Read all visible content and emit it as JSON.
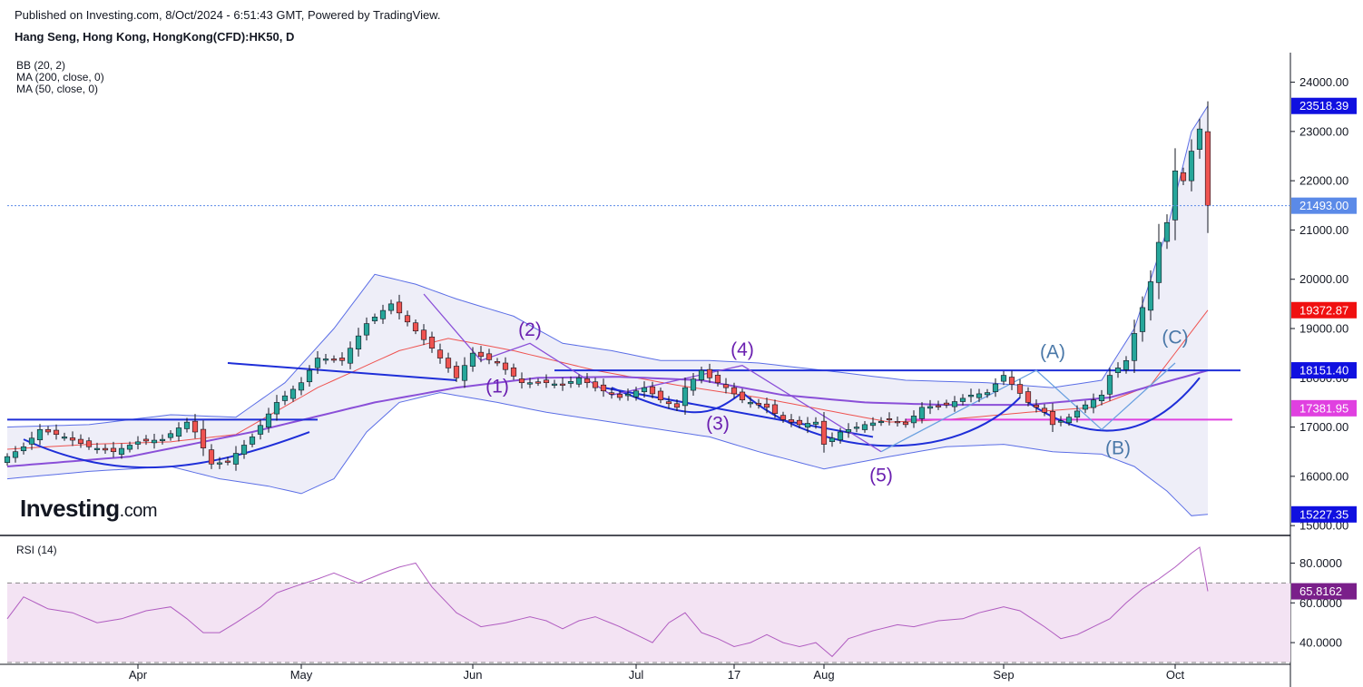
{
  "header": {
    "published": "Published on Investing.com, 8/Oct/2024 - 6:51:43 GMT, Powered by TradingView.",
    "symbol": "Hang Seng, Hong Kong, HongKong(CFD):HK50, D"
  },
  "indicators": {
    "bb": "BB (20, 2)",
    "ma200": "MA (200, close, 0)",
    "ma50": "MA (50, close, 0)",
    "rsi": "RSI (14)"
  },
  "logo": {
    "main": "Investing",
    "suffix": ".com"
  },
  "colors": {
    "up": "#26a69a",
    "down": "#ef5350",
    "trend": "#1e2ed8",
    "bb": "#5b6ee6",
    "bb_fill": "#eeeef8",
    "ma50": "#ef5350",
    "ma200": "#8a4fd8",
    "wave": "#8a4fd8",
    "magenta": "#e040e0",
    "rsi": "#b05cc0",
    "rsi_fill": "#f3e3f3"
  },
  "chart_data": [
    {
      "type": "candlestick",
      "ylim": [
        14800,
        24600
      ],
      "yticks": [
        "24000.00",
        "23000.00",
        "22000.00",
        "21000.00",
        "20000.00",
        "19000.00",
        "18000.00",
        "17000.00",
        "16000.00",
        "15000.00"
      ],
      "ytick_values": [
        24000,
        23000,
        22000,
        21000,
        20000,
        19000,
        18000,
        17000,
        16000,
        15000
      ],
      "xlim": [
        0,
        157
      ],
      "xlabels": [
        {
          "text": "Apr",
          "i": 16
        },
        {
          "text": "May",
          "i": 36
        },
        {
          "text": "Jun",
          "i": 57
        },
        {
          "text": "Jul",
          "i": 77
        },
        {
          "text": "17",
          "i": 89
        },
        {
          "text": "Aug",
          "i": 100
        },
        {
          "text": "Sep",
          "i": 122
        },
        {
          "text": "Oct",
          "i": 143
        }
      ],
      "price_labels": [
        {
          "text": "23518.39",
          "value": 23518.39,
          "color": "#1010e0"
        },
        {
          "text": "21493.00",
          "value": 21493.0,
          "color": "#5b8ae8"
        },
        {
          "text": "19372.87",
          "value": 19372.87,
          "color": "#f01010"
        },
        {
          "text": "18151.40",
          "value": 18151.4,
          "color": "#1010e0"
        },
        {
          "text": "17381.95",
          "value": 17381.95,
          "color": "#e040e0"
        },
        {
          "text": "15227.35",
          "value": 15227.35,
          "color": "#1010e0"
        }
      ],
      "current_price": 21493.0,
      "close_anchors": [
        [
          0,
          16400
        ],
        [
          2,
          16600
        ],
        [
          4,
          16950
        ],
        [
          7,
          16800
        ],
        [
          10,
          16600
        ],
        [
          13,
          16500
        ],
        [
          16,
          16700
        ],
        [
          19,
          16750
        ],
        [
          22,
          17100
        ],
        [
          23,
          16900
        ],
        [
          25,
          16250
        ],
        [
          27,
          16300
        ],
        [
          30,
          16800
        ],
        [
          33,
          17500
        ],
        [
          36,
          17900
        ],
        [
          38,
          18400
        ],
        [
          41,
          18350
        ],
        [
          44,
          19100
        ],
        [
          47,
          19500
        ],
        [
          50,
          18950
        ],
        [
          52,
          18600
        ],
        [
          55,
          18000
        ],
        [
          57,
          18500
        ],
        [
          60,
          18300
        ],
        [
          63,
          17900
        ],
        [
          66,
          17900
        ],
        [
          68,
          17850
        ],
        [
          70,
          18000
        ],
        [
          72,
          17800
        ],
        [
          75,
          17600
        ],
        [
          78,
          17800
        ],
        [
          80,
          17550
        ],
        [
          82,
          17400
        ],
        [
          83,
          17800
        ],
        [
          85,
          18150
        ],
        [
          86,
          18000
        ],
        [
          88,
          17800
        ],
        [
          90,
          17550
        ],
        [
          93,
          17400
        ],
        [
          95,
          17150
        ],
        [
          97,
          17050
        ],
        [
          99,
          17100
        ],
        [
          100,
          16650
        ],
        [
          102,
          16900
        ],
        [
          105,
          17050
        ],
        [
          108,
          17150
        ],
        [
          110,
          17050
        ],
        [
          112,
          17400
        ],
        [
          115,
          17450
        ],
        [
          118,
          17650
        ],
        [
          120,
          17700
        ],
        [
          122,
          18050
        ],
        [
          125,
          17500
        ],
        [
          127,
          17300
        ],
        [
          128,
          17050
        ],
        [
          130,
          17200
        ],
        [
          132,
          17450
        ],
        [
          134,
          17650
        ],
        [
          135,
          18050
        ],
        [
          137,
          18350
        ],
        [
          138,
          18900
        ],
        [
          140,
          19950
        ],
        [
          141,
          20750
        ],
        [
          142,
          21150
        ],
        [
          143,
          22200
        ],
        [
          144,
          22000
        ],
        [
          145,
          22600
        ],
        [
          146,
          23050
        ],
        [
          147,
          21493
        ]
      ],
      "ma50_anchors": [
        [
          0,
          16550
        ],
        [
          10,
          16650
        ],
        [
          20,
          16700
        ],
        [
          28,
          16850
        ],
        [
          38,
          17800
        ],
        [
          48,
          18550
        ],
        [
          54,
          18800
        ],
        [
          62,
          18550
        ],
        [
          72,
          18150
        ],
        [
          82,
          17850
        ],
        [
          92,
          17600
        ],
        [
          100,
          17350
        ],
        [
          108,
          17100
        ],
        [
          115,
          17150
        ],
        [
          125,
          17300
        ],
        [
          133,
          17400
        ],
        [
          140,
          17850
        ],
        [
          147,
          19372.87
        ]
      ],
      "ma200_anchors": [
        [
          0,
          16200
        ],
        [
          15,
          16400
        ],
        [
          30,
          16900
        ],
        [
          45,
          17500
        ],
        [
          55,
          17800
        ],
        [
          65,
          18000
        ],
        [
          75,
          18020
        ],
        [
          85,
          17950
        ],
        [
          95,
          17650
        ],
        [
          105,
          17500
        ],
        [
          115,
          17450
        ],
        [
          125,
          17450
        ],
        [
          135,
          17600
        ],
        [
          147,
          18151.4
        ]
      ],
      "bb_upper_anchors": [
        [
          0,
          17000
        ],
        [
          10,
          17050
        ],
        [
          20,
          17250
        ],
        [
          28,
          17200
        ],
        [
          34,
          17900
        ],
        [
          40,
          19000
        ],
        [
          45,
          20100
        ],
        [
          50,
          19900
        ],
        [
          55,
          19600
        ],
        [
          62,
          19250
        ],
        [
          68,
          18700
        ],
        [
          74,
          18550
        ],
        [
          80,
          18350
        ],
        [
          86,
          18350
        ],
        [
          92,
          18300
        ],
        [
          100,
          18150
        ],
        [
          110,
          17950
        ],
        [
          120,
          17900
        ],
        [
          128,
          17800
        ],
        [
          134,
          17950
        ],
        [
          138,
          19000
        ],
        [
          142,
          21000
        ],
        [
          145,
          23000
        ],
        [
          147,
          23518.39
        ]
      ],
      "bb_lower_anchors": [
        [
          0,
          15950
        ],
        [
          10,
          16100
        ],
        [
          20,
          16200
        ],
        [
          26,
          15950
        ],
        [
          32,
          15800
        ],
        [
          36,
          15650
        ],
        [
          40,
          15950
        ],
        [
          44,
          16900
        ],
        [
          48,
          17500
        ],
        [
          53,
          17700
        ],
        [
          60,
          17500
        ],
        [
          66,
          17300
        ],
        [
          74,
          17100
        ],
        [
          80,
          16950
        ],
        [
          86,
          16800
        ],
        [
          92,
          16500
        ],
        [
          100,
          16150
        ],
        [
          108,
          16400
        ],
        [
          115,
          16600
        ],
        [
          122,
          16650
        ],
        [
          128,
          16500
        ],
        [
          134,
          16450
        ],
        [
          138,
          16200
        ],
        [
          142,
          15700
        ],
        [
          145,
          15200
        ],
        [
          147,
          15227.35
        ]
      ],
      "trendlines": [
        {
          "p1": [
            0,
            17150
          ],
          "p2": [
            38,
            17150
          ],
          "color": "#1e2ed8"
        },
        {
          "p1": [
            27,
            18300
          ],
          "p2": [
            55,
            17950
          ],
          "color": "#1e2ed8"
        },
        {
          "p1": [
            67,
            18150
          ],
          "p2": [
            151,
            18150
          ],
          "color": "#1e2ed8"
        },
        {
          "p1": [
            73,
            17800
          ],
          "p2": [
            106,
            16800
          ],
          "color": "#1e2ed8"
        },
        {
          "p1": [
            110,
            17150
          ],
          "p2": [
            150,
            17150
          ],
          "color": "#e040e0"
        }
      ],
      "cups": [
        {
          "p": [
            [
              2,
              16750
            ],
            [
              14,
              15850
            ],
            [
              24,
              16100
            ],
            [
              37,
              16900
            ]
          ]
        },
        {
          "p": [
            [
              74,
              17800
            ],
            [
              84,
              17100
            ],
            [
              86,
              17200
            ],
            [
              90,
              17700
            ]
          ]
        },
        {
          "p": [
            [
              90,
              17700
            ],
            [
              100,
              16300
            ],
            [
              116,
              16250
            ],
            [
              124,
              17600
            ]
          ]
        },
        {
          "p": [
            [
              125,
              17500
            ],
            [
              133,
              16600
            ],
            [
              140,
              16750
            ],
            [
              146,
              18000
            ]
          ]
        }
      ],
      "waves": [
        {
          "color": "#8a4fd8",
          "p": [
            [
              51,
              19700
            ],
            [
              58,
              18350
            ],
            [
              64,
              18700
            ],
            [
              74,
              17650
            ],
            [
              90,
              18250
            ],
            [
              107,
              16500
            ]
          ]
        },
        {
          "color": "#6aa0e0",
          "p": [
            [
              107,
              16500
            ],
            [
              126,
              18150
            ],
            [
              134,
              16950
            ],
            [
              143,
              18300
            ]
          ]
        }
      ],
      "wave_labels": [
        {
          "text": "(1)",
          "i": 60,
          "v": 17700,
          "color": "#6a1fb0"
        },
        {
          "text": "(2)",
          "i": 64,
          "v": 18850,
          "color": "#6a1fb0"
        },
        {
          "text": "(3)",
          "i": 87,
          "v": 16950,
          "color": "#6a1fb0"
        },
        {
          "text": "(4)",
          "i": 90,
          "v": 18450,
          "color": "#6a1fb0"
        },
        {
          "text": "(5)",
          "i": 107,
          "v": 15900,
          "color": "#6a1fb0"
        },
        {
          "text": "(A)",
          "i": 128,
          "v": 18400,
          "color": "#4a78a8"
        },
        {
          "text": "(B)",
          "i": 136,
          "v": 16450,
          "color": "#4a78a8"
        },
        {
          "text": "(C)",
          "i": 143,
          "v": 18700,
          "color": "#4a78a8"
        }
      ]
    },
    {
      "type": "line",
      "name": "RSI (14)",
      "ylim": [
        30,
        93
      ],
      "yticks": [
        "80.0000",
        "60.0000",
        "40.0000"
      ],
      "ytick_values": [
        80,
        60,
        40
      ],
      "band": [
        30,
        70
      ],
      "current_value_label": "65.8162",
      "current_value": 65.8162,
      "rsi_anchors": [
        [
          0,
          52
        ],
        [
          2,
          63
        ],
        [
          5,
          57
        ],
        [
          8,
          55
        ],
        [
          11,
          50
        ],
        [
          14,
          52
        ],
        [
          17,
          56
        ],
        [
          20,
          58
        ],
        [
          22,
          52
        ],
        [
          24,
          45
        ],
        [
          26,
          45
        ],
        [
          28,
          50
        ],
        [
          31,
          58
        ],
        [
          33,
          65
        ],
        [
          35,
          68
        ],
        [
          38,
          72
        ],
        [
          40,
          75
        ],
        [
          43,
          70
        ],
        [
          46,
          75
        ],
        [
          48,
          78
        ],
        [
          50,
          80
        ],
        [
          52,
          68
        ],
        [
          55,
          55
        ],
        [
          58,
          48
        ],
        [
          61,
          50
        ],
        [
          64,
          53
        ],
        [
          66,
          51
        ],
        [
          68,
          47
        ],
        [
          70,
          51
        ],
        [
          72,
          53
        ],
        [
          75,
          48
        ],
        [
          77,
          44
        ],
        [
          79,
          40
        ],
        [
          81,
          50
        ],
        [
          83,
          55
        ],
        [
          85,
          45
        ],
        [
          87,
          42
        ],
        [
          89,
          38
        ],
        [
          91,
          40
        ],
        [
          93,
          44
        ],
        [
          95,
          40
        ],
        [
          97,
          38
        ],
        [
          99,
          40
        ],
        [
          101,
          33
        ],
        [
          103,
          42
        ],
        [
          106,
          46
        ],
        [
          109,
          49
        ],
        [
          111,
          48
        ],
        [
          114,
          51
        ],
        [
          117,
          52
        ],
        [
          119,
          55
        ],
        [
          122,
          58
        ],
        [
          124,
          56
        ],
        [
          127,
          48
        ],
        [
          129,
          42
        ],
        [
          131,
          44
        ],
        [
          133,
          48
        ],
        [
          135,
          52
        ],
        [
          137,
          60
        ],
        [
          139,
          67
        ],
        [
          141,
          72
        ],
        [
          143,
          78
        ],
        [
          145,
          85
        ],
        [
          146,
          88
        ],
        [
          147,
          65.8162
        ]
      ]
    }
  ]
}
